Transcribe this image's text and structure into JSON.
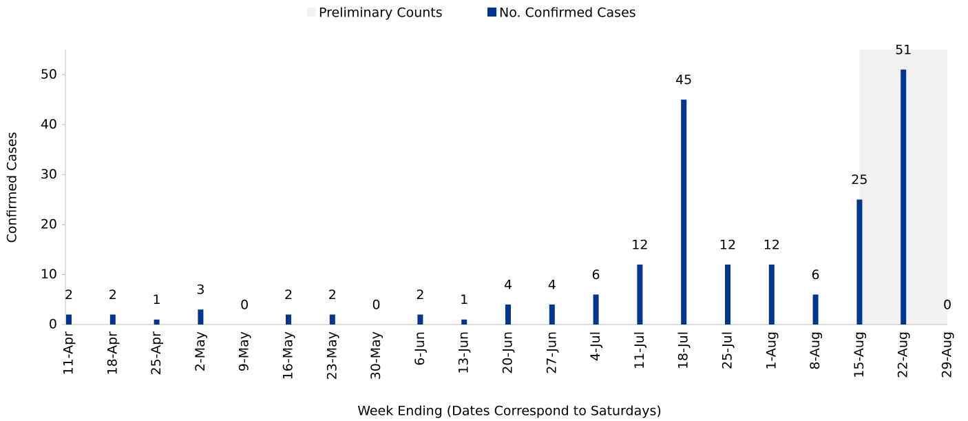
{
  "chart_data": {
    "type": "bar",
    "x_label": "Week Ending (Dates Correspond to Saturdays)",
    "y_label": "Confirmed Cases",
    "categories": [
      "11-Apr",
      "18-Apr",
      "25-Apr",
      "2-May",
      "9-May",
      "16-May",
      "23-May",
      "30-May",
      "6-Jun",
      "13-Jun",
      "20-Jun",
      "27-Jun",
      "4-Jul",
      "11-Jul",
      "18-Jul",
      "25-Jul",
      "1-Aug",
      "8-Aug",
      "15-Aug",
      "22-Aug",
      "29-Aug"
    ],
    "series": [
      {
        "name": "Preliminary Counts",
        "color": "#f2f2f2",
        "values": [
          null,
          null,
          null,
          null,
          null,
          null,
          null,
          null,
          null,
          null,
          null,
          null,
          null,
          null,
          null,
          null,
          null,
          null,
          null,
          55,
          55
        ]
      },
      {
        "name": "No. Confirmed Cases",
        "color": "#003591",
        "values": [
          2,
          2,
          1,
          3,
          0,
          2,
          2,
          0,
          2,
          1,
          4,
          4,
          6,
          12,
          45,
          12,
          12,
          6,
          25,
          51,
          0
        ]
      }
    ],
    "ylim": [
      0,
      55
    ],
    "yticks": [
      0,
      10,
      20,
      30,
      40,
      50
    ]
  }
}
